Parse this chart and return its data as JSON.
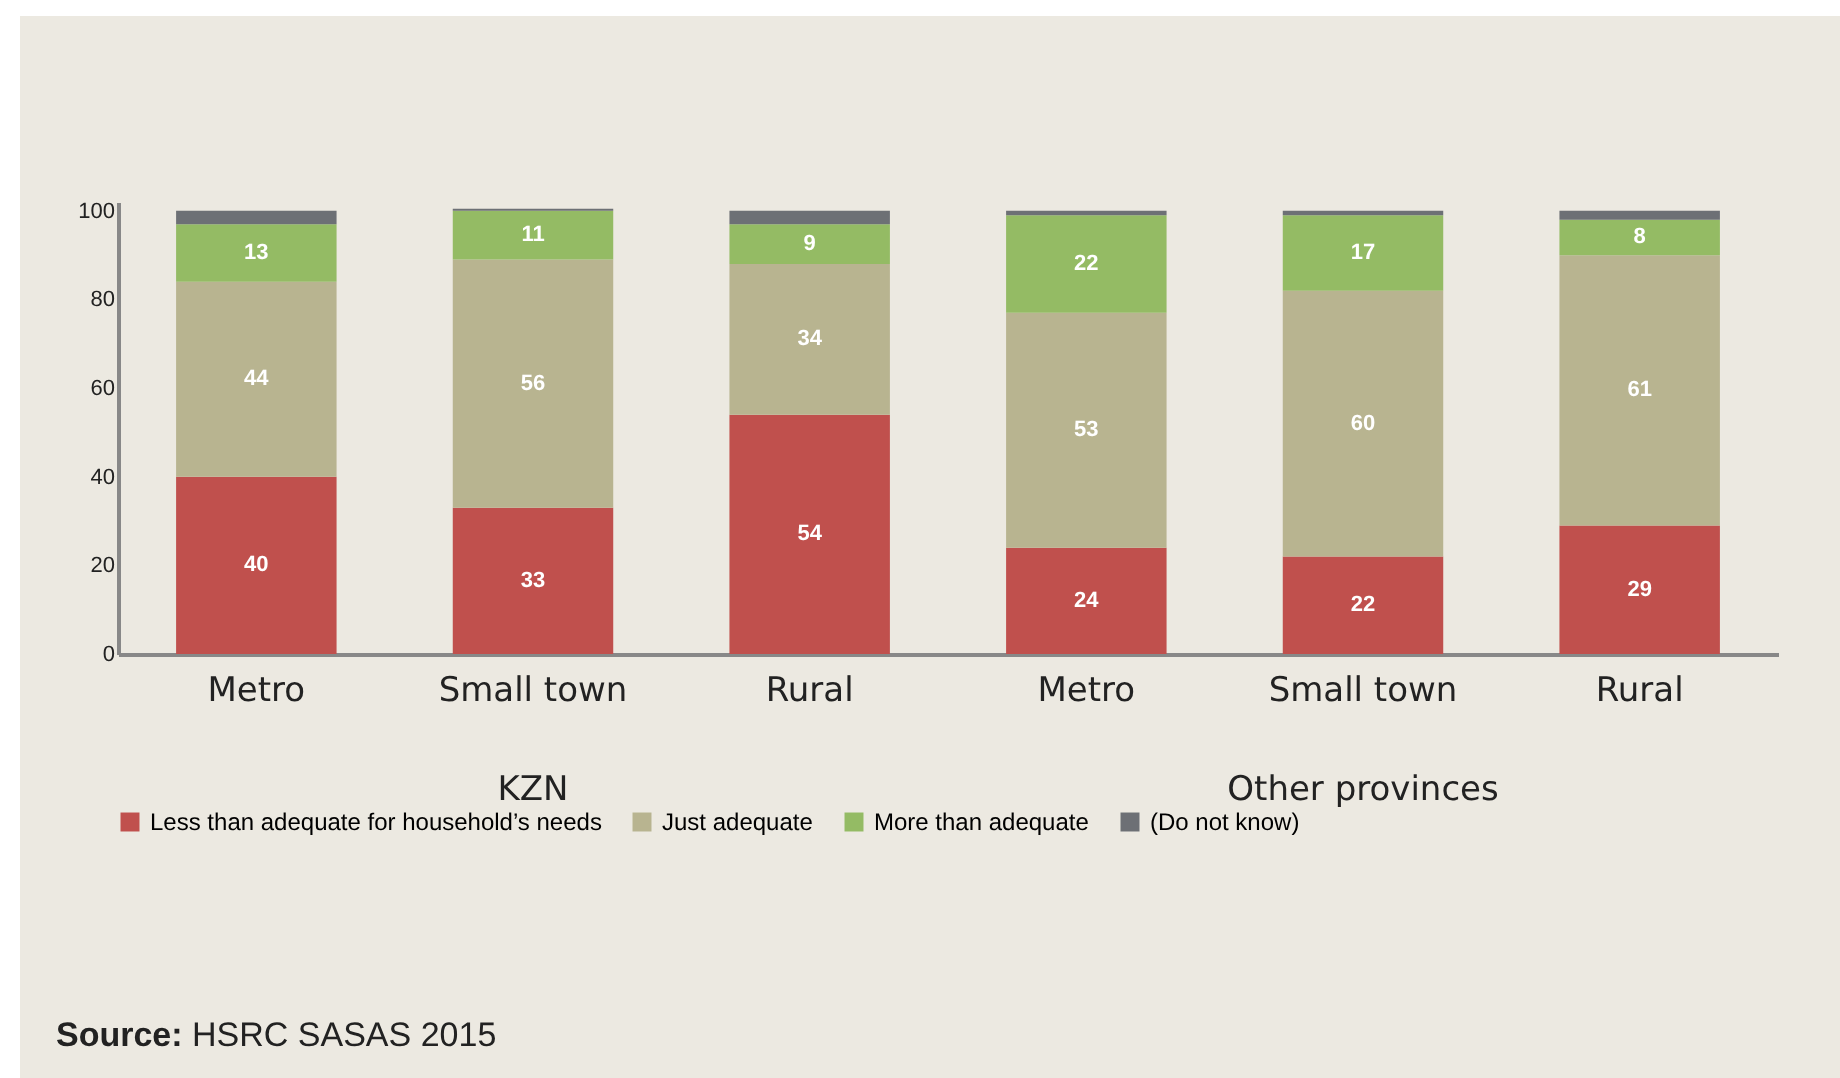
{
  "chart_data": {
    "type": "bar",
    "stacked": true,
    "categories": [
      "Metro",
      "Small town",
      "Rural",
      "Metro",
      "Small town",
      "Rural"
    ],
    "series": [
      {
        "name": "Less than adequate for household’s needs",
        "color": "#c0504d",
        "values": [
          40,
          33,
          54,
          24,
          22,
          29
        ],
        "value_labels": [
          "40",
          "33",
          "54",
          "24",
          "22",
          "29"
        ]
      },
      {
        "name": "Just adequate",
        "color": "#b8b490",
        "values": [
          44,
          56,
          34,
          53,
          60,
          61
        ],
        "value_labels": [
          "44",
          "56",
          "34",
          "53",
          "60",
          "61"
        ]
      },
      {
        "name": "More than adequate",
        "color": "#94bb64",
        "values": [
          13,
          11,
          9,
          22,
          17,
          8
        ],
        "value_labels": [
          "13",
          "11",
          "9",
          "22",
          "17",
          "8"
        ]
      },
      {
        "name": "(Do not know)",
        "color": "#6d7075",
        "values": [
          3,
          0.5,
          3,
          1,
          1,
          2
        ]
      }
    ],
    "ylim": [
      0,
      102
    ],
    "yticks": [
      0,
      20,
      40,
      60,
      80,
      100
    ],
    "grid": false,
    "legend": "bottom",
    "annotations": [
      "KZN",
      "Other provinces",
      "Source: HSRC SASAS 2015"
    ]
  }
}
